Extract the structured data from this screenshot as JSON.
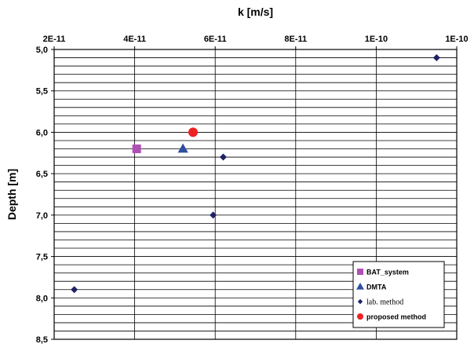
{
  "chart_data": {
    "type": "scatter",
    "xlabel": "k [m/s]",
    "ylabel": "Depth [m]",
    "xlim": [
      2e-11,
      1.2e-10
    ],
    "ylim": [
      5.0,
      8.5
    ],
    "y_inverted": true,
    "x_axis_position": "top",
    "x_ticks": [
      2e-11,
      4e-11,
      6e-11,
      8e-11,
      1e-10,
      1.2e-10
    ],
    "x_tick_labels": [
      "2E-11",
      "4E-11",
      "6E-11",
      "8E-11",
      "1E-10",
      "1E-10"
    ],
    "y_ticks": [
      5.0,
      5.5,
      6.0,
      6.5,
      7.0,
      7.5,
      8.0,
      8.5
    ],
    "y_tick_labels": [
      "5,0",
      "5,5",
      "6,0",
      "6,5",
      "7,0",
      "7,5",
      "8,0",
      "8,5"
    ],
    "y_minor_step": 0.1,
    "grid": true,
    "legend_position": "bottom-right",
    "series": [
      {
        "name": "BAT_system",
        "marker": "square",
        "color": "#b04fb4",
        "points": [
          {
            "x": 4.05e-11,
            "y": 6.2
          }
        ]
      },
      {
        "name": "DMTA",
        "marker": "triangle",
        "color": "#2f4ea1",
        "points": [
          {
            "x": 5.2e-11,
            "y": 6.2
          }
        ]
      },
      {
        "name": "lab. method",
        "marker": "diamond",
        "color": "#1f2266",
        "points": [
          {
            "x": 1.15e-10,
            "y": 5.1
          },
          {
            "x": 6.2e-11,
            "y": 6.3
          },
          {
            "x": 5.95e-11,
            "y": 7.0
          },
          {
            "x": 2.5e-11,
            "y": 7.9
          }
        ]
      },
      {
        "name": "proposed method",
        "marker": "circle",
        "color": "#ee2222",
        "points": [
          {
            "x": 5.45e-11,
            "y": 6.0
          }
        ]
      }
    ]
  }
}
